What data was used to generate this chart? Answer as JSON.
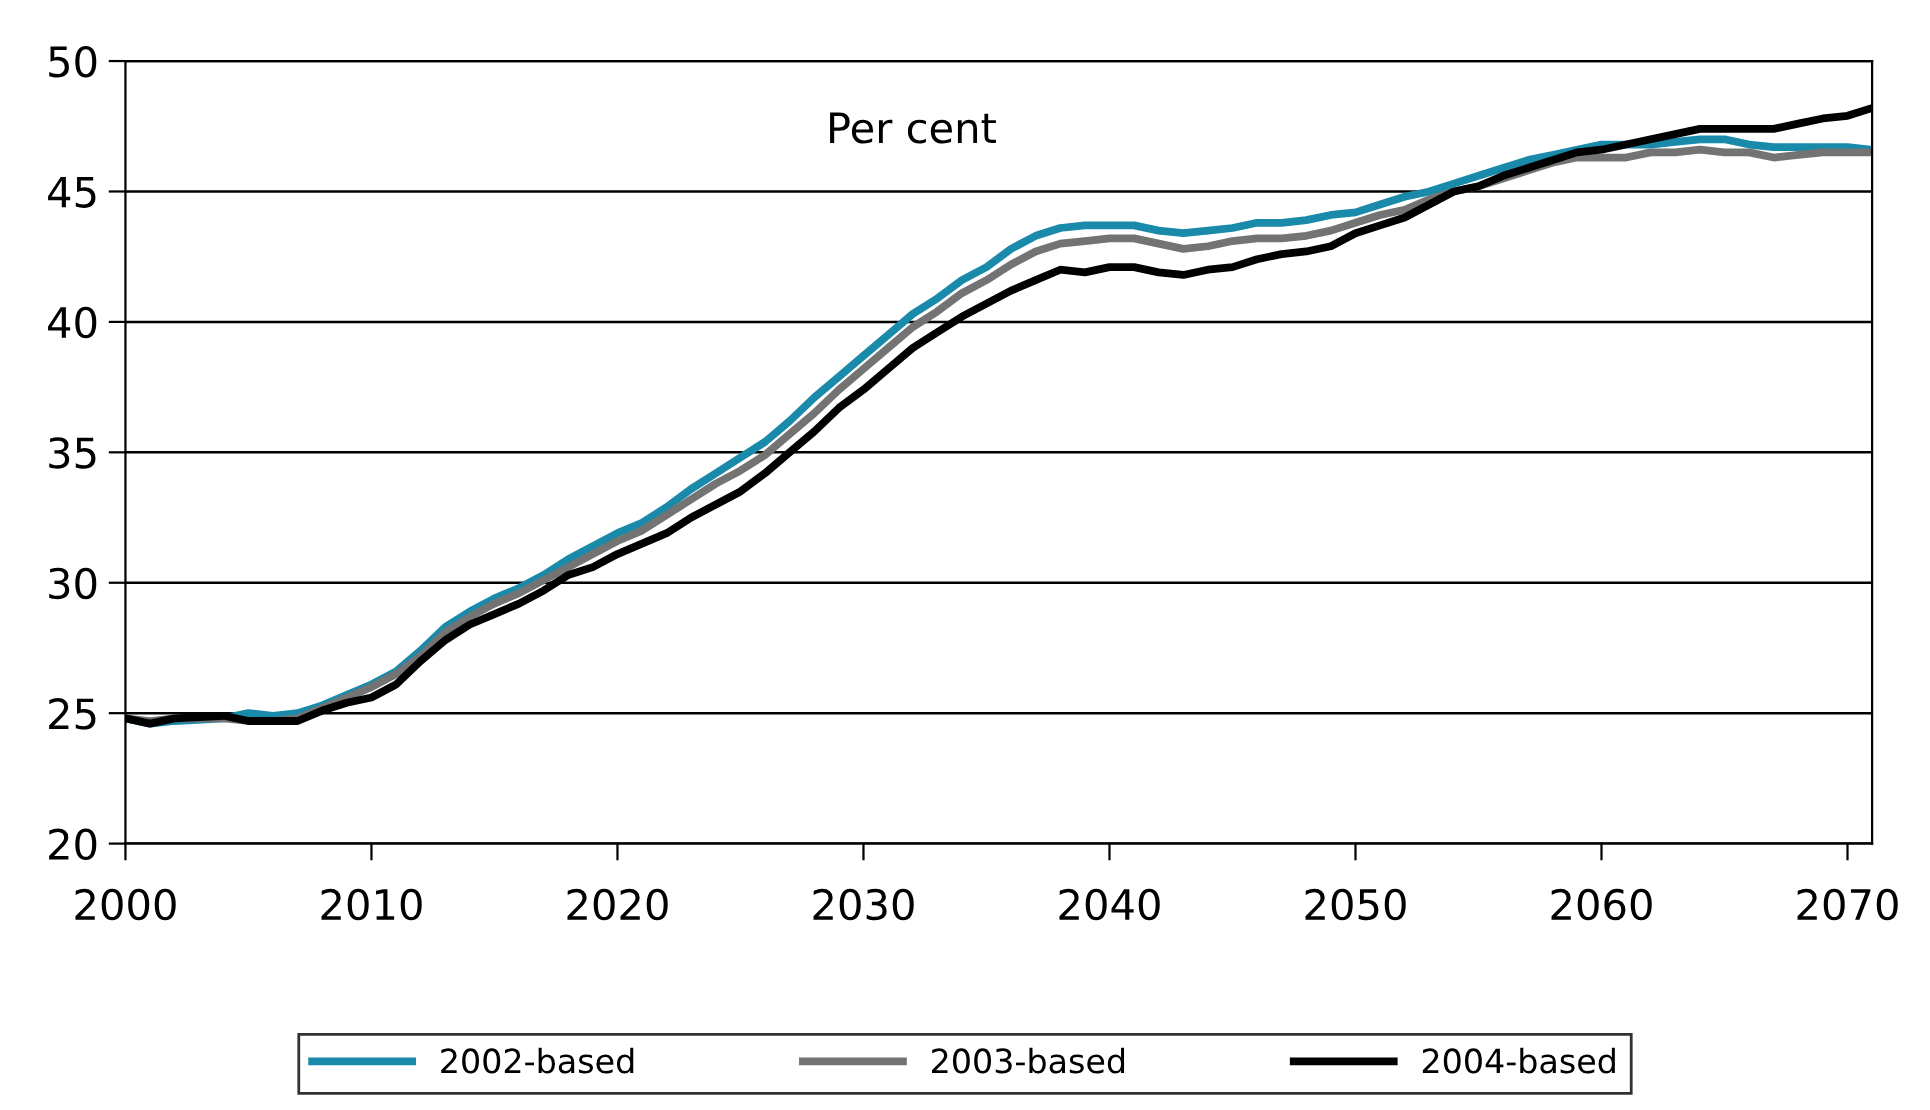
{
  "chart_data": {
    "type": "line",
    "annotations": [
      "Per cent"
    ],
    "x": [
      2000,
      2001,
      2002,
      2004,
      2005,
      2006,
      2007,
      2008,
      2009,
      2010,
      2011,
      2012,
      2013,
      2014,
      2015,
      2016,
      2017,
      2018,
      2019,
      2020,
      2021,
      2022,
      2023,
      2024,
      2025,
      2026,
      2027,
      2028,
      2029,
      2030,
      2031,
      2032,
      2033,
      2034,
      2035,
      2036,
      2037,
      2038,
      2039,
      2040,
      2041,
      2042,
      2043,
      2044,
      2045,
      2046,
      2047,
      2048,
      2049,
      2050,
      2051,
      2052,
      2053,
      2054,
      2055,
      2056,
      2057,
      2058,
      2059,
      2060,
      2061,
      2062,
      2063,
      2064,
      2065,
      2066,
      2067,
      2068,
      2069,
      2070,
      2071
    ],
    "series": [
      {
        "name": "2002-based",
        "color": "#1a8aaa",
        "values": [
          24.8,
          24.6,
          24.7,
          24.8,
          25.0,
          24.9,
          25.0,
          25.3,
          25.7,
          26.1,
          26.6,
          27.4,
          28.3,
          28.9,
          29.4,
          29.8,
          30.3,
          30.9,
          31.4,
          31.9,
          32.3,
          32.9,
          33.6,
          34.2,
          34.8,
          35.4,
          36.2,
          37.1,
          37.9,
          38.7,
          39.5,
          40.3,
          40.9,
          41.6,
          42.1,
          42.8,
          43.3,
          43.6,
          43.7,
          43.7,
          43.7,
          43.5,
          43.4,
          43.5,
          43.6,
          43.8,
          43.8,
          43.9,
          44.1,
          44.2,
          44.5,
          44.8,
          45.0,
          45.3,
          45.6,
          45.9,
          46.2,
          46.4,
          46.6,
          46.8,
          46.8,
          46.8,
          46.9,
          47.0,
          47.0,
          46.8,
          46.7,
          46.7,
          46.7,
          46.7,
          46.6
        ]
      },
      {
        "name": "2003-based",
        "color": "#737373",
        "values": [
          24.8,
          24.7,
          24.8,
          24.8,
          24.7,
          24.7,
          24.8,
          25.2,
          25.6,
          26.0,
          26.5,
          27.2,
          28.1,
          28.7,
          29.2,
          29.6,
          30.1,
          30.6,
          31.1,
          31.6,
          32.0,
          32.6,
          33.2,
          33.8,
          34.3,
          34.9,
          35.7,
          36.5,
          37.4,
          38.2,
          39.0,
          39.8,
          40.4,
          41.1,
          41.6,
          42.2,
          42.7,
          43.0,
          43.1,
          43.2,
          43.2,
          43.0,
          42.8,
          42.9,
          43.1,
          43.2,
          43.2,
          43.3,
          43.5,
          43.8,
          44.1,
          44.3,
          44.7,
          45.0,
          45.2,
          45.5,
          45.8,
          46.1,
          46.3,
          46.3,
          46.3,
          46.5,
          46.5,
          46.6,
          46.5,
          46.5,
          46.3,
          46.4,
          46.5,
          46.5,
          46.5
        ]
      },
      {
        "name": "2004-based",
        "color": "#000000",
        "values": [
          24.8,
          24.6,
          24.8,
          24.9,
          24.7,
          24.7,
          24.7,
          25.1,
          25.4,
          25.6,
          26.1,
          27.0,
          27.8,
          28.4,
          28.8,
          29.2,
          29.7,
          30.3,
          30.6,
          31.1,
          31.5,
          31.9,
          32.5,
          33.0,
          33.5,
          34.2,
          35.0,
          35.8,
          36.7,
          37.4,
          38.2,
          39.0,
          39.6,
          40.2,
          40.7,
          41.2,
          41.6,
          42.0,
          41.9,
          42.1,
          42.1,
          41.9,
          41.8,
          42.0,
          42.1,
          42.4,
          42.6,
          42.7,
          42.9,
          43.4,
          43.7,
          44.0,
          44.5,
          45.0,
          45.2,
          45.6,
          45.9,
          46.2,
          46.5,
          46.6,
          46.8,
          47.0,
          47.2,
          47.4,
          47.4,
          47.4,
          47.4,
          47.6,
          47.8,
          47.9,
          48.2
        ]
      }
    ],
    "xlim": [
      2000,
      2071
    ],
    "xticks": [
      2000,
      2010,
      2020,
      2030,
      2040,
      2050,
      2060,
      2070
    ],
    "ylim": [
      20,
      50
    ],
    "yticks": [
      20,
      25,
      30,
      35,
      40,
      45,
      50
    ],
    "grid": "y",
    "legend": "bottom",
    "marker": "none",
    "line_style": "solid"
  }
}
